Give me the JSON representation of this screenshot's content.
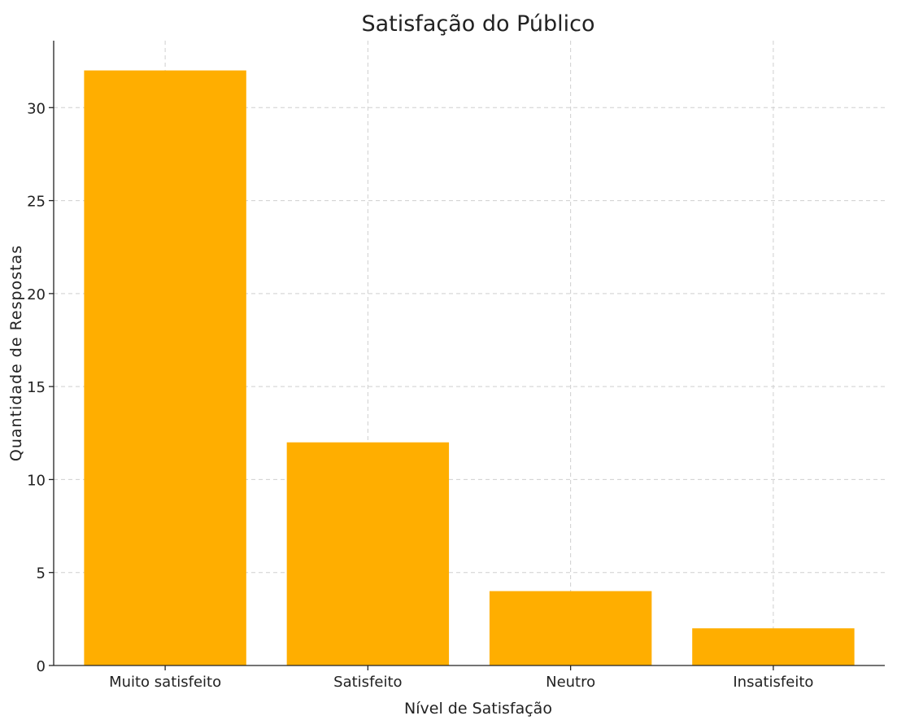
{
  "chart_data": {
    "type": "bar",
    "title": "Satisfação do Público",
    "xlabel": "Nível de Satisfação",
    "ylabel": "Quantidade de Respostas",
    "categories": [
      "Muito satisfeito",
      "Satisfeito",
      "Neutro",
      "Insatisfeito"
    ],
    "values": [
      32,
      12,
      4,
      2
    ],
    "ylim": [
      0,
      33.6
    ],
    "yticks": [
      0,
      5,
      10,
      15,
      20,
      25,
      30
    ],
    "grid": true,
    "bar_color": "#FFAE00"
  }
}
